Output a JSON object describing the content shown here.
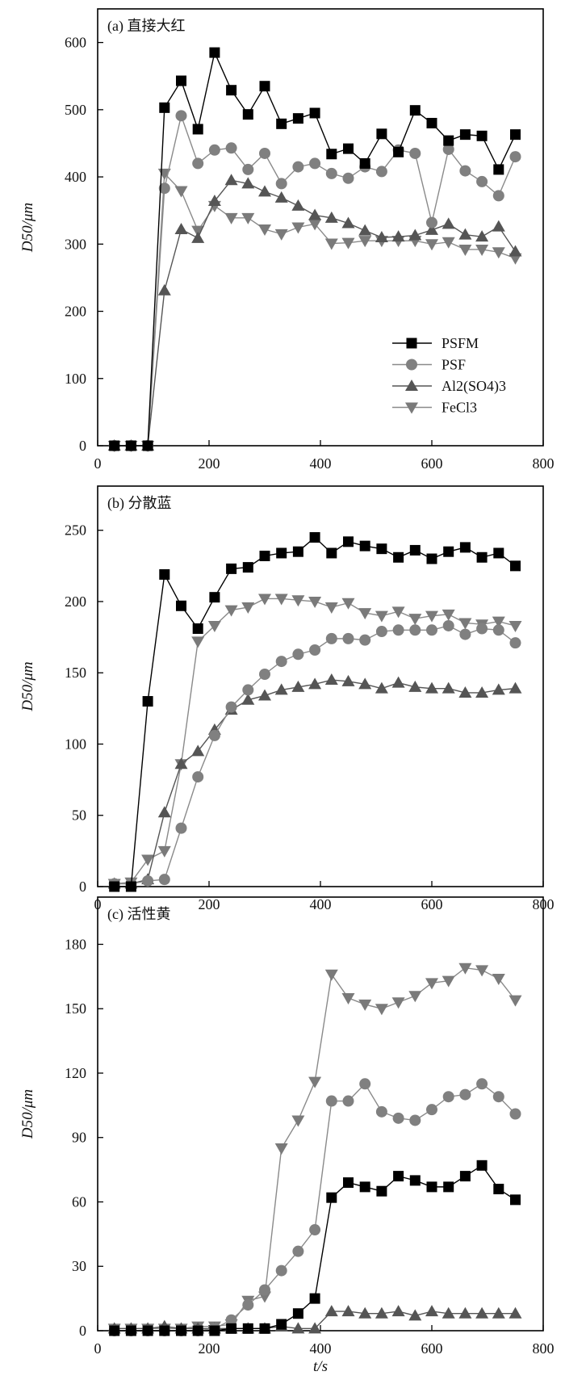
{
  "chart_data": {
    "type": "line",
    "x": [
      30,
      60,
      90,
      120,
      150,
      180,
      210,
      240,
      270,
      300,
      330,
      360,
      390,
      420,
      450,
      480,
      510,
      540,
      570,
      600,
      630,
      660,
      690,
      720,
      750
    ],
    "xlabel": "t/s",
    "ylabel": "D50/μm",
    "xlim": [
      0,
      800
    ],
    "xticks": [
      0,
      200,
      400,
      600,
      800
    ],
    "legend": {
      "placement": "lower-right of panel (a)",
      "entries": [
        "PSFM",
        "PSF",
        "Al2(SO4)3",
        "FeCl3"
      ]
    },
    "colors": {
      "PSFM": "#000000",
      "PSF": "#808080",
      "Al2(SO4)3": "#555555",
      "FeCl3": "#7a7a7a"
    },
    "panels": [
      {
        "title": "(a) 直接大红",
        "ylim": [
          0,
          650
        ],
        "yticks": [
          0,
          100,
          200,
          300,
          400,
          500,
          600
        ],
        "show_legend": true,
        "series": [
          {
            "name": "PSFM",
            "values": [
              0,
              0,
              0,
              503,
              543,
              471,
              585,
              529,
              493,
              535,
              479,
              487,
              495,
              434,
              442,
              420,
              464,
              437,
              499,
              480,
              454,
              463,
              461,
              411,
              463
            ]
          },
          {
            "name": "PSF",
            "values": [
              0,
              0,
              0,
              383,
              491,
              420,
              440,
              443,
              411,
              435,
              390,
              415,
              420,
              405,
              398,
              415,
              408,
              440,
              435,
              332,
              441,
              409,
              393,
              372,
              430
            ]
          },
          {
            "name": "Al2(SO4)3",
            "values": [
              0,
              0,
              0,
              231,
              322,
              309,
              364,
              395,
              390,
              378,
              369,
              357,
              343,
              339,
              331,
              320,
              310,
              311,
              313,
              321,
              330,
              314,
              311,
              326,
              289
            ]
          },
          {
            "name": "FeCl3",
            "values": [
              0,
              0,
              0,
              405,
              379,
              320,
              357,
              339,
              339,
              322,
              315,
              325,
              330,
              301,
              302,
              305,
              305,
              305,
              305,
              300,
              303,
              292,
              292,
              288,
              279
            ]
          }
        ]
      },
      {
        "title": "(b) 分散蓝",
        "ylim": [
          0,
          281
        ],
        "yticks": [
          0,
          50,
          100,
          150,
          200,
          250
        ],
        "show_legend": false,
        "series": [
          {
            "name": "PSFM",
            "values": [
              0,
              0,
              130,
              219,
              197,
              181,
              203,
              223,
              224,
              232,
              234,
              235,
              245,
              234,
              242,
              239,
              237,
              231,
              236,
              230,
              235,
              238,
              231,
              234,
              225
            ]
          },
          {
            "name": "PSF",
            "values": [
              2,
              2,
              4,
              5,
              41,
              77,
              106,
              126,
              138,
              149,
              158,
              163,
              166,
              174,
              174,
              173,
              179,
              180,
              180,
              180,
              183,
              177,
              181,
              180,
              171
            ]
          },
          {
            "name": "Al2(SO4)3",
            "values": [
              2,
              2,
              5,
              52,
              86,
              95,
              110,
              124,
              131,
              134,
              138,
              140,
              142,
              145,
              144,
              142,
              139,
              143,
              140,
              139,
              139,
              136,
              136,
              138,
              139
            ]
          },
          {
            "name": "FeCl3",
            "values": [
              2,
              3,
              19,
              25,
              86,
              172,
              183,
              194,
              196,
              202,
              202,
              201,
              200,
              196,
              199,
              192,
              190,
              193,
              188,
              190,
              191,
              185,
              184,
              186,
              183
            ]
          }
        ]
      },
      {
        "title": "(c) 活性黄",
        "ylim": [
          0,
          202
        ],
        "yticks": [
          0,
          30,
          60,
          90,
          120,
          150,
          180
        ],
        "show_legend": false,
        "series": [
          {
            "name": "PSFM",
            "values": [
              0,
              0,
              0,
              0,
              0,
              0,
              0,
              1,
              1,
              1,
              3,
              8,
              15,
              62,
              69,
              67,
              65,
              72,
              70,
              67,
              67,
              72,
              77,
              66,
              61
            ]
          },
          {
            "name": "PSF",
            "values": [
              0,
              0,
              0,
              0,
              0,
              0,
              1,
              5,
              12,
              19,
              28,
              37,
              47,
              107,
              107,
              115,
              102,
              99,
              98,
              103,
              109,
              110,
              115,
              109,
              101
            ]
          },
          {
            "name": "Al2(SO4)3",
            "values": [
              1,
              1,
              1,
              2,
              1,
              1,
              1,
              1,
              1,
              1,
              2,
              1,
              1,
              9,
              9,
              8,
              8,
              9,
              7,
              9,
              8,
              8,
              8,
              8,
              8
            ]
          },
          {
            "name": "FeCl3",
            "values": [
              1,
              1,
              1,
              1,
              1,
              2,
              2,
              3,
              14,
              16,
              85,
              98,
              116,
              166,
              155,
              152,
              150,
              153,
              156,
              162,
              163,
              169,
              168,
              164,
              154
            ]
          }
        ]
      }
    ]
  }
}
